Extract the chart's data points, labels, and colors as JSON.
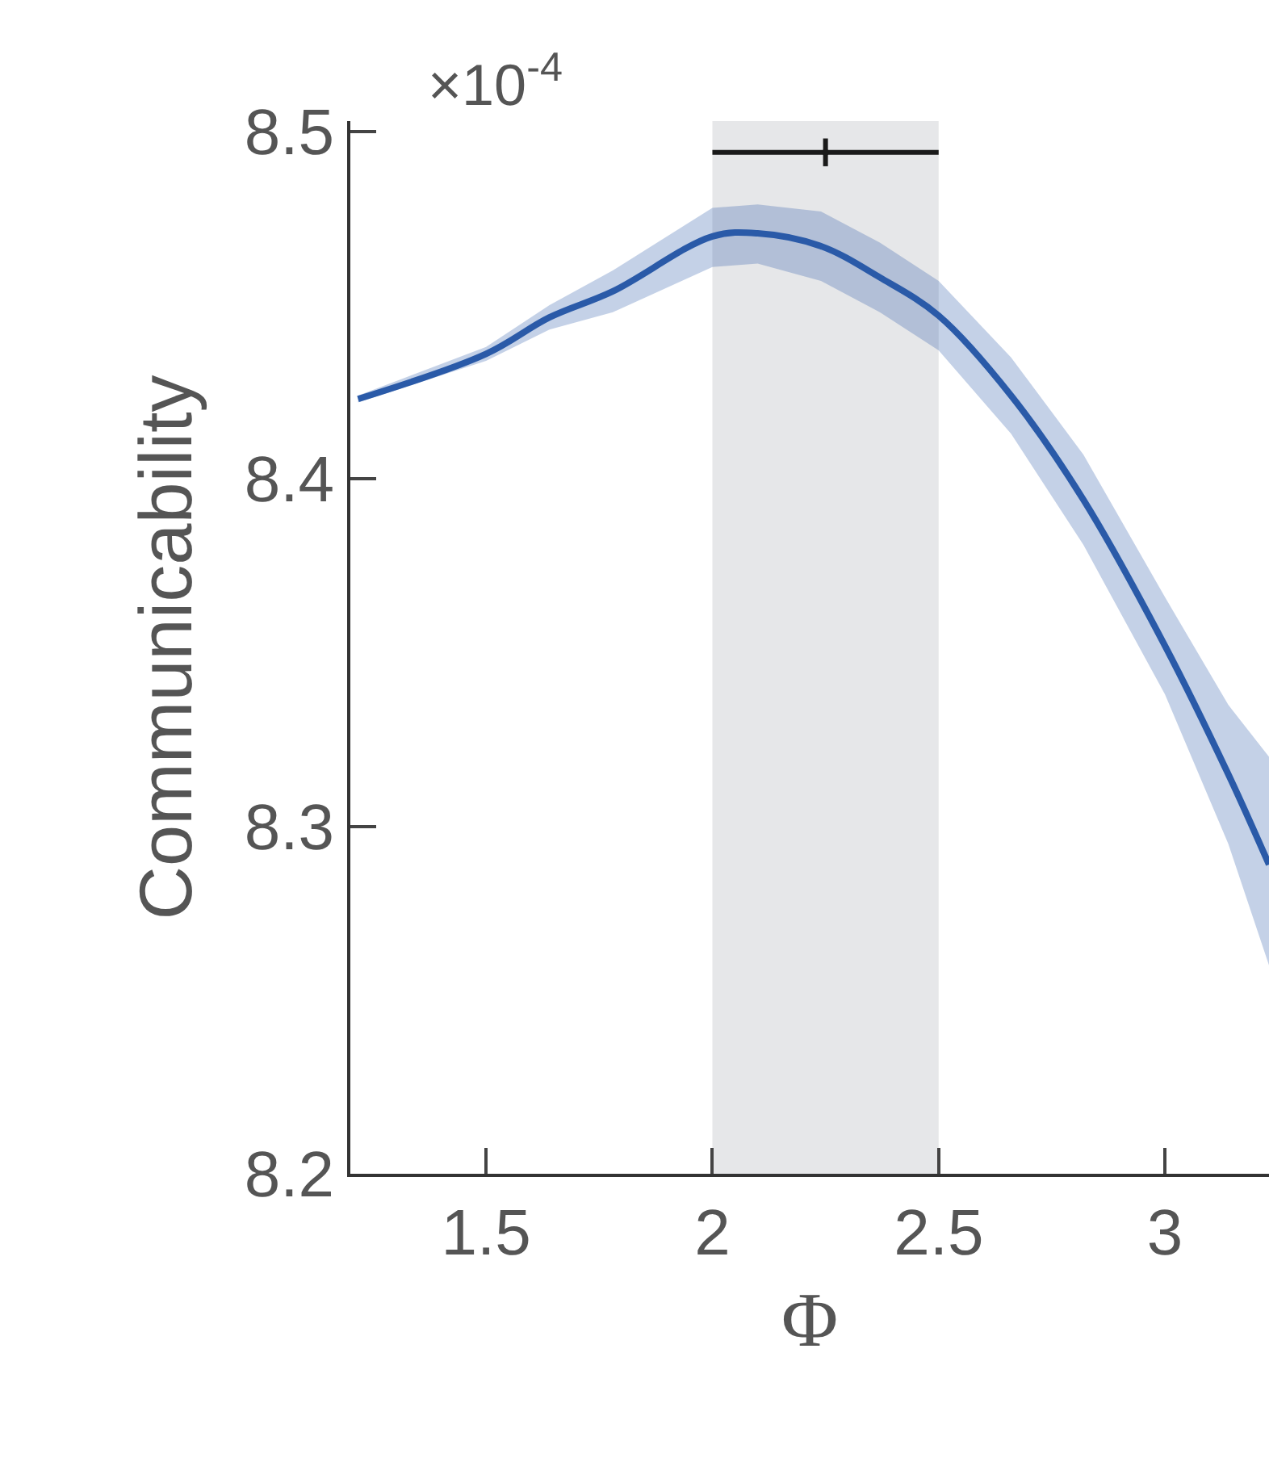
{
  "chart_data": {
    "type": "line",
    "xlabel": "Φ",
    "ylabel": "Communicability",
    "annotations": [
      "×10$^{-4}$"
    ],
    "xlim": [
      1.2,
      3.23
    ],
    "ylim": [
      8.2,
      8.503
    ],
    "xticks": [
      1.5,
      2,
      2.5,
      3
    ],
    "yticks": [
      8.2,
      8.3,
      8.4,
      8.5
    ],
    "bands": [
      {
        "axis": "x",
        "from": 2,
        "to": 2.5,
        "color": "#e6e7e9"
      }
    ],
    "series": [
      {
        "color": "#2a5aa8",
        "x": [
          1.217,
          1.5,
          1.64,
          1.78,
          2.0,
          2.1,
          2.24,
          2.37,
          2.5,
          2.66,
          2.82,
          3.0,
          3.14,
          3.23
        ],
        "values": [
          8.423,
          8.436,
          8.4465,
          8.454,
          8.4698,
          8.4707,
          8.467,
          8.458,
          8.447,
          8.424,
          8.394,
          8.352,
          8.315,
          8.289
        ],
        "lower": [
          8.422,
          8.434,
          8.443,
          8.448,
          8.461,
          8.462,
          8.457,
          8.448,
          8.437,
          8.413,
          8.381,
          8.338,
          8.295,
          8.26
        ],
        "upper": [
          8.424,
          8.438,
          8.45,
          8.46,
          8.478,
          8.479,
          8.477,
          8.468,
          8.457,
          8.435,
          8.407,
          8.366,
          8.335,
          8.32
        ]
      },
      {
        "type": "scatter",
        "color": "#1a1a1a",
        "x": [
          2.25
        ],
        "values": [
          8.494
        ],
        "xerrors": [
          0.25
        ],
        "errors": [
          0.004
        ]
      }
    ],
    "grid": false
  }
}
